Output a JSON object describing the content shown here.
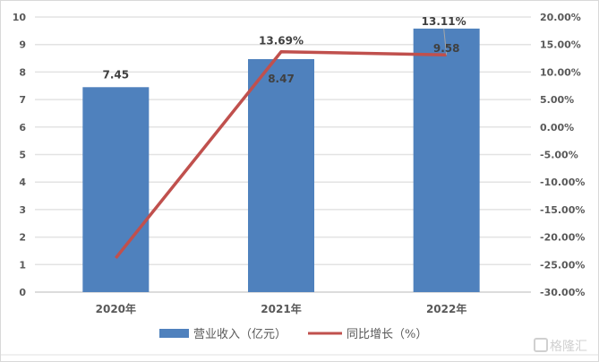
{
  "chart_data": {
    "type": "bar+line",
    "title": "",
    "categories": [
      "2020年",
      "2021年",
      "2022年"
    ],
    "series": [
      {
        "name": "营业收入（亿元）",
        "type": "bar",
        "axis": "left",
        "color": "#4f81bd",
        "values": [
          7.45,
          8.47,
          9.58
        ],
        "labels": [
          "7.45",
          "8.47",
          "9.58"
        ]
      },
      {
        "name": "同比增长（%）",
        "type": "line",
        "axis": "right",
        "color": "#c0504d",
        "values": [
          -23.8,
          13.69,
          13.11
        ],
        "labels": [
          "",
          "13.69%",
          "13.11%"
        ]
      }
    ],
    "left_axis": {
      "min": 0,
      "max": 10,
      "step": 1,
      "ticks": [
        "0",
        "1",
        "2",
        "3",
        "4",
        "5",
        "6",
        "7",
        "8",
        "9",
        "10"
      ]
    },
    "right_axis": {
      "min": -30,
      "max": 20,
      "step": 5,
      "ticks": [
        "-30.00%",
        "-25.00%",
        "-20.00%",
        "-15.00%",
        "-10.00%",
        "-5.00%",
        "0.00%",
        "5.00%",
        "10.00%",
        "15.00%",
        "20.00%"
      ]
    },
    "grid": true,
    "legend_position": "bottom"
  },
  "legend": {
    "bar_label": "营业收入（亿元）",
    "line_label": "同比增长（%）"
  },
  "watermark": {
    "text": "格隆汇"
  }
}
